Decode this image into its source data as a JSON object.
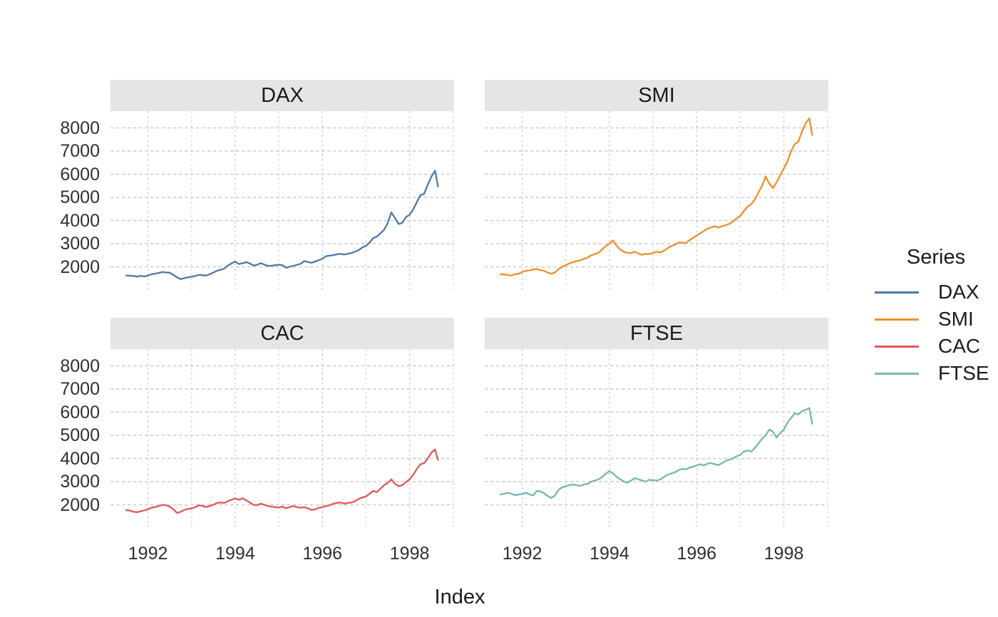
{
  "chart_data": {
    "type": "line",
    "title": "",
    "xlabel": "Index",
    "ylabel": "",
    "legend_title": "Series",
    "legend_position": "right",
    "grid": "dashed",
    "facets": [
      "DAX",
      "SMI",
      "CAC",
      "FTSE"
    ],
    "x_ticks": [
      1992,
      1994,
      1996,
      1998
    ],
    "x_minor_ticks": [
      1993,
      1995,
      1997,
      1999
    ],
    "y_ticks": [
      2000,
      3000,
      4000,
      5000,
      6000,
      7000,
      8000
    ],
    "x_range": [
      1991.14,
      1999.02
    ],
    "y_range": [
      1030,
      8720
    ],
    "x": [
      1991.5,
      1991.583,
      1991.667,
      1991.75,
      1991.833,
      1991.917,
      1992,
      1992.083,
      1992.167,
      1992.25,
      1992.333,
      1992.417,
      1992.5,
      1992.583,
      1992.667,
      1992.75,
      1992.833,
      1992.917,
      1993,
      1993.083,
      1993.167,
      1993.25,
      1993.333,
      1993.417,
      1993.5,
      1993.583,
      1993.667,
      1993.75,
      1993.833,
      1993.917,
      1994,
      1994.083,
      1994.167,
      1994.25,
      1994.333,
      1994.417,
      1994.5,
      1994.583,
      1994.667,
      1994.75,
      1994.833,
      1994.917,
      1995,
      1995.083,
      1995.167,
      1995.25,
      1995.333,
      1995.417,
      1995.5,
      1995.583,
      1995.667,
      1995.75,
      1995.833,
      1995.917,
      1996,
      1996.083,
      1996.167,
      1996.25,
      1996.333,
      1996.417,
      1996.5,
      1996.583,
      1996.667,
      1996.75,
      1996.833,
      1996.917,
      1997,
      1997.083,
      1997.167,
      1997.25,
      1997.333,
      1997.417,
      1997.5,
      1997.583,
      1997.667,
      1997.75,
      1997.833,
      1997.917,
      1998,
      1998.083,
      1998.167,
      1998.25,
      1998.333,
      1998.417,
      1998.5,
      1998.583,
      1998.65
    ],
    "series": [
      {
        "name": "DAX",
        "color": "#4E79A7",
        "values": [
          1628,
          1615,
          1605,
          1580,
          1610,
          1585,
          1625,
          1680,
          1705,
          1740,
          1780,
          1755,
          1745,
          1650,
          1545,
          1470,
          1510,
          1545,
          1570,
          1605,
          1650,
          1640,
          1620,
          1680,
          1755,
          1830,
          1870,
          1925,
          2050,
          2150,
          2225,
          2120,
          2155,
          2200,
          2150,
          2060,
          2080,
          2160,
          2100,
          2040,
          2050,
          2070,
          2090,
          2075,
          1960,
          2005,
          2040,
          2085,
          2130,
          2250,
          2210,
          2175,
          2230,
          2285,
          2355,
          2460,
          2485,
          2505,
          2540,
          2565,
          2530,
          2560,
          2600,
          2655,
          2720,
          2840,
          2905,
          3050,
          3250,
          3305,
          3450,
          3600,
          3900,
          4350,
          4100,
          3850,
          3900,
          4150,
          4250,
          4480,
          4800,
          5100,
          5150,
          5550,
          5900,
          6150,
          5470
        ]
      },
      {
        "name": "SMI",
        "color": "#F28E2B",
        "values": [
          1678,
          1670,
          1650,
          1620,
          1680,
          1700,
          1780,
          1830,
          1850,
          1880,
          1905,
          1860,
          1830,
          1750,
          1700,
          1755,
          1900,
          2000,
          2070,
          2150,
          2200,
          2250,
          2280,
          2350,
          2400,
          2500,
          2550,
          2605,
          2750,
          2900,
          3005,
          3140,
          2900,
          2750,
          2650,
          2600,
          2600,
          2650,
          2570,
          2520,
          2560,
          2550,
          2600,
          2650,
          2620,
          2700,
          2800,
          2900,
          2950,
          3050,
          3050,
          3020,
          3150,
          3250,
          3350,
          3450,
          3550,
          3650,
          3700,
          3750,
          3700,
          3750,
          3800,
          3855,
          3950,
          4100,
          4200,
          4400,
          4600,
          4700,
          4900,
          5200,
          5500,
          5900,
          5600,
          5400,
          5650,
          5950,
          6250,
          6550,
          7000,
          7300,
          7400,
          7850,
          8200,
          8412,
          7700
        ]
      },
      {
        "name": "CAC",
        "color": "#E15759",
        "values": [
          1773,
          1750,
          1700,
          1680,
          1720,
          1760,
          1800,
          1880,
          1905,
          1950,
          2000,
          1980,
          1920,
          1800,
          1650,
          1700,
          1780,
          1820,
          1840,
          1900,
          1980,
          1950,
          1900,
          1950,
          2000,
          2080,
          2100,
          2080,
          2150,
          2220,
          2270,
          2220,
          2280,
          2200,
          2100,
          2000,
          1980,
          2050,
          2000,
          1950,
          1920,
          1900,
          1880,
          1920,
          1850,
          1900,
          1950,
          1900,
          1870,
          1900,
          1850,
          1780,
          1800,
          1870,
          1900,
          1950,
          1980,
          2050,
          2080,
          2100,
          2050,
          2080,
          2100,
          2160,
          2250,
          2320,
          2360,
          2480,
          2600,
          2550,
          2700,
          2850,
          2950,
          3100,
          2900,
          2800,
          2850,
          2980,
          3100,
          3300,
          3550,
          3750,
          3800,
          4000,
          4250,
          4388,
          3940
        ]
      },
      {
        "name": "FTSE",
        "color": "#76B7B2",
        "values": [
          2444,
          2480,
          2520,
          2480,
          2420,
          2440,
          2470,
          2520,
          2450,
          2400,
          2600,
          2580,
          2500,
          2380,
          2300,
          2400,
          2650,
          2750,
          2800,
          2850,
          2880,
          2840,
          2820,
          2880,
          2900,
          3000,
          3050,
          3100,
          3200,
          3350,
          3450,
          3350,
          3200,
          3100,
          3000,
          2950,
          3050,
          3150,
          3100,
          3050,
          3000,
          3080,
          3060,
          3050,
          3100,
          3200,
          3300,
          3350,
          3400,
          3500,
          3550,
          3530,
          3600,
          3650,
          3700,
          3750,
          3700,
          3780,
          3800,
          3750,
          3710,
          3800,
          3900,
          3950,
          4000,
          4100,
          4150,
          4300,
          4350,
          4300,
          4450,
          4650,
          4850,
          5000,
          5250,
          5150,
          4900,
          5100,
          5250,
          5550,
          5750,
          5950,
          5900,
          6050,
          6100,
          6179,
          5500
        ]
      }
    ]
  },
  "colors": {
    "background": "#FFFFFF",
    "strip_bg": "#E5E5E5",
    "grid_major": "#CBCBCB",
    "grid_minor": "#D7D7D7",
    "axis_text": "#303030",
    "title_text": "#1B1B1B"
  }
}
